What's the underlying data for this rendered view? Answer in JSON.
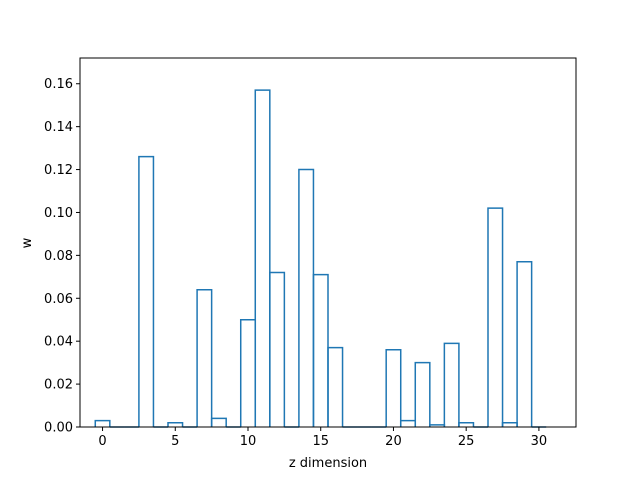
{
  "chart_data": {
    "type": "bar",
    "style": "step-histogram",
    "xlabel": "z dimension",
    "ylabel": "w",
    "xlim": [
      -1.55,
      32.55
    ],
    "ylim": [
      0,
      0.172
    ],
    "xticks": [
      0,
      5,
      10,
      15,
      20,
      25,
      30
    ],
    "yticks": [
      0.0,
      0.02,
      0.04,
      0.06,
      0.08,
      0.1,
      0.12,
      0.14,
      0.16
    ],
    "ytick_labels": [
      "0.00",
      "0.02",
      "0.04",
      "0.06",
      "0.08",
      "0.10",
      "0.12",
      "0.14",
      "0.16"
    ],
    "color": "#1f77b4",
    "categories": [
      0,
      1,
      2,
      3,
      4,
      5,
      6,
      7,
      8,
      9,
      10,
      11,
      12,
      13,
      14,
      15,
      16,
      17,
      18,
      19,
      20,
      21,
      22,
      23,
      24,
      25,
      26,
      27,
      28,
      29,
      30
    ],
    "values": [
      0.003,
      0,
      0,
      0.126,
      0,
      0.002,
      0,
      0.064,
      0.004,
      0,
      0.05,
      0.157,
      0.072,
      0,
      0.12,
      0.071,
      0.037,
      0,
      0,
      0,
      0.036,
      0.003,
      0.03,
      0.001,
      0.039,
      0.002,
      0,
      0.102,
      0.002,
      0.077,
      0
    ],
    "grid": false
  }
}
